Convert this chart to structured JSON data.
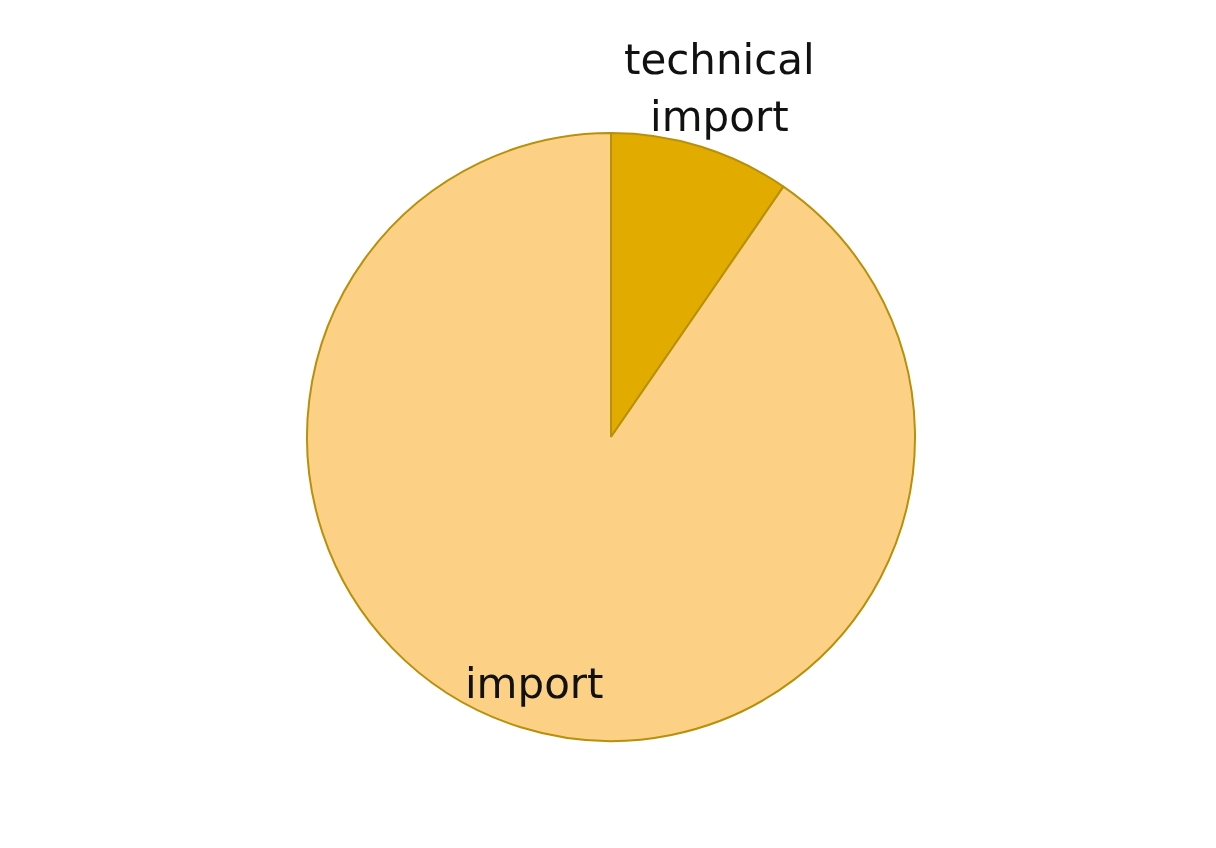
{
  "chart_data": {
    "type": "pie",
    "categories": [
      "technical import",
      "import"
    ],
    "values": [
      9.6,
      90.4
    ],
    "colors": [
      "#e2ab00",
      "#fdd185"
    ]
  }
}
